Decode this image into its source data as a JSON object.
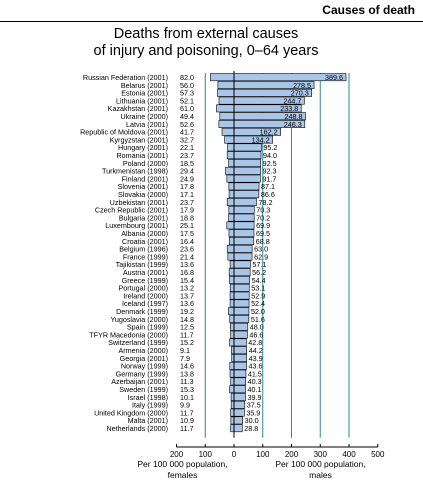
{
  "header": {
    "section": "Causes of death"
  },
  "chart_data": {
    "type": "bar",
    "title": "Deaths from external causes",
    "subtitle": "of injury and poisoning, 0–64 years",
    "categories": [
      "Russian Federation (2001)",
      "Belarus (2001)",
      "Estonia (2001)",
      "Lithuania (2001)",
      "Kazakhstan (2001)",
      "Ukraine (2000)",
      "Latvia (2001)",
      "Republic of Moldova (2001)",
      "Kyrgyzstan (2001)",
      "Hungary (2001)",
      "Romania (2001)",
      "Poland (2000)",
      "Turkmenistan (1998)",
      "Finland (2001)",
      "Slovenia (2001)",
      "Slovakia (2000)",
      "Uzbekistan (2001)",
      "Czech Republic (2001)",
      "Bulgaria (2001)",
      "Luxembourg (2001)",
      "Albania (2000)",
      "Croatia (2001)",
      "Belgium (1996)",
      "France (1999)",
      "Tajikistan (1999)",
      "Austria (2001)",
      "Greece (1999)",
      "Portugal (2000)",
      "Ireland (2000)",
      "Iceland (1997)",
      "Denmark (1999)",
      "Yugoslavia (2000)",
      "Spain (1999)",
      "TFYR Macedonia (2000)",
      "Switzerland (1999)",
      "Armenia (2000)",
      "Georgia (2001)",
      "Norway (1999)",
      "Germany (1999)",
      "Azerbaijan (2001)",
      "Sweden (1999)",
      "Israel (1998)",
      "Italy (1999)",
      "United Kingdom (2000)",
      "Malta (2001)",
      "Netherlands (2000)"
    ],
    "series": [
      {
        "name": "females",
        "values": [
          82.0,
          56.0,
          57.3,
          52.1,
          61.0,
          49.4,
          52.6,
          41.7,
          32.7,
          22.1,
          23.7,
          18.5,
          29.4,
          24.9,
          17.8,
          17.1,
          23.7,
          17.9,
          18.8,
          25.1,
          17.5,
          16.4,
          23.6,
          21.4,
          13.6,
          16.8,
          15.4,
          13.2,
          13.7,
          13.6,
          19.2,
          14.8,
          12.5,
          11.7,
          15.2,
          9.1,
          7.9,
          14.6,
          13.8,
          11.3,
          15.3,
          10.1,
          9.9,
          11.7,
          10.9,
          11.7
        ]
      },
      {
        "name": "males",
        "values": [
          389.6,
          278.5,
          270.3,
          244.7,
          233.8,
          248.8,
          246.3,
          162.2,
          134.2,
          95.2,
          94.0,
          92.5,
          92.3,
          91.7,
          87.1,
          86.6,
          78.2,
          70.3,
          70.2,
          69.9,
          69.5,
          68.8,
          63.0,
          62.9,
          57.1,
          56.2,
          54.4,
          53.1,
          52.9,
          52.4,
          52.0,
          51.6,
          48.0,
          46.6,
          42.8,
          44.2,
          43.9,
          43.6,
          41.5,
          40.3,
          40.1,
          39.9,
          37.5,
          35.9,
          30.0,
          28.8
        ]
      }
    ],
    "xaxis": {
      "ticks": [
        "200",
        "100",
        "0",
        "100",
        "200",
        "300",
        "400",
        "500"
      ]
    },
    "xlabel_females": "Per 100 000 population, females",
    "xlabel_males": "Per 100 000 population, males",
    "xlim_females": [
      0,
      200
    ],
    "xlim_males": [
      0,
      500
    ],
    "grid": true,
    "colors": {
      "bar": "#a9c6e8",
      "grid": "#2e8b8b",
      "border": "#000000"
    }
  }
}
